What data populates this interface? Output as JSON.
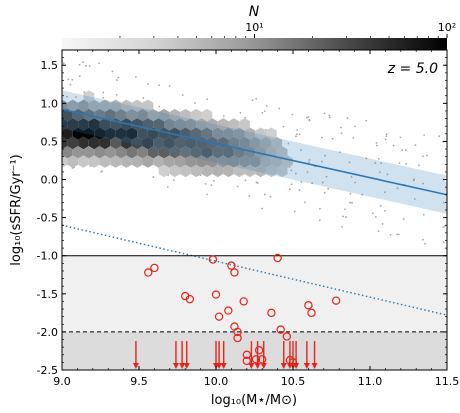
{
  "chart_data": {
    "type": "scatter",
    "title": "",
    "xlabel": "log₁₀(M⋆/M⊙)",
    "ylabel": "log₁₀(sSFR/Gyr⁻¹)",
    "xlim": [
      9.0,
      11.5
    ],
    "ylim": [
      -2.5,
      1.7
    ],
    "x_ticks": [
      "9.0",
      "9.5",
      "10.0",
      "10.5",
      "11.0",
      "11.5"
    ],
    "y_ticks": [
      "-2.5",
      "-2.0",
      "-1.5",
      "-1.0",
      "-0.5",
      "0.0",
      "0.5",
      "1.0",
      "1.5"
    ],
    "annotation": "z = 5.0",
    "colorbar": {
      "label": "N",
      "scale": "log",
      "range": [
        1,
        100
      ],
      "tick_labels": [
        "10¹",
        "10²"
      ],
      "colormap": "greys"
    },
    "hexbin_density": {
      "description_units": "log10 counts",
      "ridge": [
        [
          9.0,
          0.65
        ],
        [
          9.3,
          0.62
        ],
        [
          9.6,
          0.55
        ],
        [
          9.9,
          0.45
        ],
        [
          10.2,
          0.38
        ],
        [
          10.5,
          0.28
        ]
      ],
      "x_extent": [
        9.0,
        10.6
      ],
      "scatter_width": 0.22
    },
    "fit_line": {
      "color": "#2a77b4",
      "points": [
        [
          9.0,
          0.92
        ],
        [
          11.5,
          -0.2
        ]
      ],
      "band_halfwidth": [
        0.25,
        0.25
      ]
    },
    "dotted_line": {
      "color": "#2a77b4",
      "points": [
        [
          9.0,
          -0.6
        ],
        [
          11.5,
          -1.78
        ]
      ]
    },
    "hlines": [
      {
        "y": -1.0,
        "style": "solid"
      },
      {
        "y": -2.0,
        "style": "dashed"
      }
    ],
    "shaded_regions": [
      {
        "y_from": -2.0,
        "y_to": -1.0,
        "color": "#f0f0f0"
      },
      {
        "y_from": -2.5,
        "y_to": -2.0,
        "color": "#dcdcdc"
      }
    ],
    "red_circles": {
      "color": "#e8231a",
      "points": [
        [
          9.56,
          -1.22
        ],
        [
          9.6,
          -1.16
        ],
        [
          9.8,
          -1.53
        ],
        [
          9.83,
          -1.57
        ],
        [
          9.98,
          -1.05
        ],
        [
          10.0,
          -1.51
        ],
        [
          10.02,
          -1.8
        ],
        [
          10.08,
          -1.72
        ],
        [
          10.1,
          -1.13
        ],
        [
          10.12,
          -1.22
        ],
        [
          10.12,
          -1.93
        ],
        [
          10.14,
          -2.0
        ],
        [
          10.14,
          -2.08
        ],
        [
          10.18,
          -1.6
        ],
        [
          10.2,
          -2.3
        ],
        [
          10.2,
          -2.38
        ],
        [
          10.26,
          -2.36
        ],
        [
          10.28,
          -2.24
        ],
        [
          10.3,
          -2.36
        ],
        [
          10.36,
          -1.75
        ],
        [
          10.4,
          -1.03
        ],
        [
          10.42,
          -1.97
        ],
        [
          10.46,
          -2.06
        ],
        [
          10.48,
          -2.37
        ],
        [
          10.5,
          -2.4
        ],
        [
          10.6,
          -1.65
        ],
        [
          10.62,
          -1.75
        ],
        [
          10.78,
          -1.59
        ]
      ]
    },
    "upper_limit_arrows": {
      "color": "#e8231a",
      "x": [
        9.48,
        9.74,
        9.78,
        9.81,
        10.0,
        10.02,
        10.05,
        10.23,
        10.27,
        10.31,
        10.44,
        10.48,
        10.5,
        10.52,
        10.59,
        10.64
      ],
      "y_top": -2.12,
      "y_bottom": -2.5
    },
    "background_points": {
      "color": "#a8a8a8",
      "count_hint": 260,
      "x_range": [
        9.0,
        11.5
      ],
      "y_range": [
        -1.0,
        1.7
      ]
    }
  }
}
